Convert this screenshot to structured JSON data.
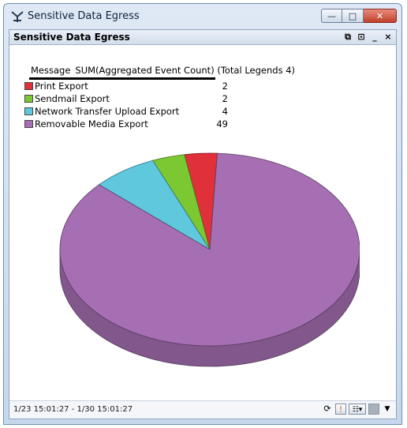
{
  "window": {
    "title": "Sensitive Data Egress",
    "minimize_glyph": "—",
    "maximize_glyph": "□",
    "close_glyph": "✕"
  },
  "panel": {
    "title": "Sensitive Data Egress",
    "controls": [
      "⧉",
      "⊡",
      "_",
      "×"
    ]
  },
  "legend": {
    "header_col1": "Message",
    "header_col2": "SUM(Aggregated Event Count) (Total Legends 4)"
  },
  "chart_data": {
    "type": "pie",
    "title": "",
    "slices": [
      {
        "label": "Print Export",
        "value": 2,
        "color": "#e0303a"
      },
      {
        "label": "Sendmail Export",
        "value": 2,
        "color": "#7cc832"
      },
      {
        "label": "Network Transfer Upload Export",
        "value": 4,
        "color": "#5fc8dc"
      },
      {
        "label": "Removable Media Export",
        "value": 49,
        "color": "#a66fb3"
      }
    ],
    "style": "3d-tilted"
  },
  "status": {
    "time_range": "1/23 15:01:27 - 1/30 15:01:27",
    "tools": [
      "refresh-icon",
      "warning-icon",
      "view-options-icon",
      "settings-icon",
      "dropdown-icon"
    ]
  }
}
